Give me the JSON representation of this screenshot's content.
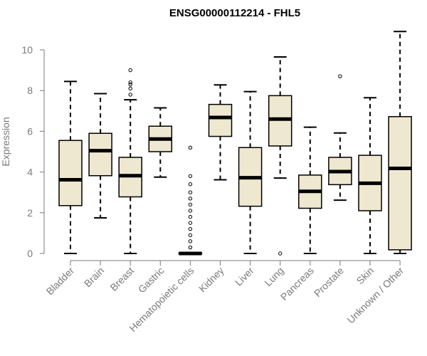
{
  "chart_data": {
    "type": "boxplot",
    "title": "ENSG00000112214 - FHL5",
    "xlabel": "",
    "ylabel": "Expression",
    "ylim": [
      0,
      11
    ],
    "yticks": [
      0,
      2,
      4,
      6,
      8,
      10
    ],
    "colors": {
      "box_fill": "#efe8d0",
      "stroke": "#000000",
      "tick_text": "#7a7a7a"
    },
    "categories": [
      "Bladder",
      "Brain",
      "Breast",
      "Gastric",
      "Hematopoietic cells",
      "Kidney",
      "Liver",
      "Lung",
      "Pancreas",
      "Prostate",
      "Skin",
      "Unknown / Other"
    ],
    "boxes": [
      {
        "name": "Bladder",
        "min": 0,
        "q1": 2.35,
        "median": 3.62,
        "q3": 5.55,
        "max": 8.45,
        "outliers": []
      },
      {
        "name": "Brain",
        "min": 1.75,
        "q1": 3.82,
        "median": 5.05,
        "q3": 5.9,
        "max": 7.85,
        "outliers": []
      },
      {
        "name": "Breast",
        "min": 0,
        "q1": 2.78,
        "median": 3.82,
        "q3": 4.72,
        "max": 7.55,
        "outliers": [
          7.8,
          8.1,
          8.3,
          8.4,
          9.0
        ]
      },
      {
        "name": "Gastric",
        "min": 3.75,
        "q1": 5.0,
        "median": 5.62,
        "q3": 6.25,
        "max": 7.15,
        "outliers": []
      },
      {
        "name": "Hematopoietic cells",
        "min": 0,
        "q1": 0,
        "median": 0,
        "q3": 0.02,
        "max": 0.05,
        "outliers": [
          0.3,
          0.6,
          0.9,
          1.2,
          1.5,
          1.8,
          2.1,
          2.4,
          2.7,
          3.0,
          3.4,
          3.8,
          5.2
        ]
      },
      {
        "name": "Kidney",
        "min": 3.62,
        "q1": 5.75,
        "median": 6.68,
        "q3": 7.32,
        "max": 8.28,
        "outliers": []
      },
      {
        "name": "Liver",
        "min": 0,
        "q1": 2.32,
        "median": 3.72,
        "q3": 5.2,
        "max": 7.95,
        "outliers": []
      },
      {
        "name": "Lung",
        "min": 3.7,
        "q1": 5.28,
        "median": 6.6,
        "q3": 7.75,
        "max": 9.65,
        "outliers": [
          0
        ]
      },
      {
        "name": "Pancreas",
        "min": 0,
        "q1": 2.22,
        "median": 3.05,
        "q3": 3.85,
        "max": 6.2,
        "outliers": []
      },
      {
        "name": "Prostate",
        "min": 2.62,
        "q1": 3.38,
        "median": 4.02,
        "q3": 4.72,
        "max": 5.92,
        "outliers": [
          8.7
        ]
      },
      {
        "name": "Skin",
        "min": 0,
        "q1": 2.1,
        "median": 3.45,
        "q3": 4.82,
        "max": 7.65,
        "outliers": []
      },
      {
        "name": "Unknown / Other",
        "min": 0,
        "q1": 0.18,
        "median": 4.18,
        "q3": 6.72,
        "max": 10.9,
        "outliers": []
      }
    ]
  }
}
